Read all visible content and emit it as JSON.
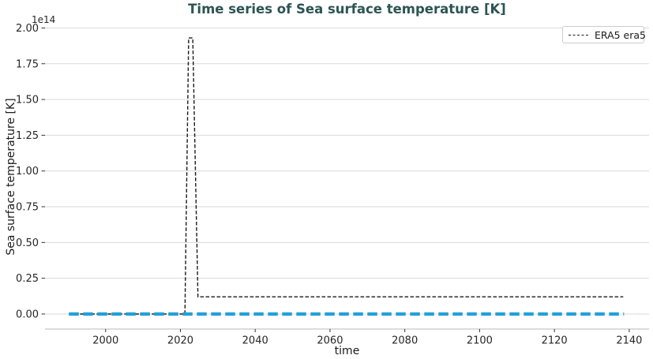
{
  "colors": {
    "title": "#2d5454",
    "grid": "#d9d9d9",
    "spine": "#c8c8c8",
    "tick_mark": "#333333",
    "tick_label": "#262626",
    "era5_line": "#1a1a1a",
    "zero_line": "#23a0dc",
    "legend_border": "#cccccc",
    "background": "#ffffff"
  },
  "legend": {
    "position": "upper right",
    "entries": [
      {
        "label": "ERA5 era5",
        "linestyle": "dashed",
        "color": "#1a1a1a"
      }
    ]
  },
  "chart_data": {
    "type": "line",
    "title": "Time series of Sea surface temperature [K]",
    "xlabel": "time",
    "ylabel": "Sea surface temperature [K]",
    "y_offset_text": "1e14",
    "y_unit_multiplier": 100000000000000.0,
    "xlim": [
      1983.8,
      2145.3
    ],
    "ylim_1e14": [
      -0.105,
      2.03
    ],
    "xticks": [
      2000,
      2020,
      2040,
      2060,
      2080,
      2100,
      2120,
      2140
    ],
    "xtick_labels": [
      "2000",
      "2020",
      "2040",
      "2060",
      "2080",
      "2100",
      "2120",
      "2140"
    ],
    "yticks_1e14": [
      0.0,
      0.25,
      0.5,
      0.75,
      1.0,
      1.25,
      1.5,
      1.75,
      2.0
    ],
    "ytick_labels": [
      "0.00",
      "0.25",
      "0.50",
      "0.75",
      "1.00",
      "1.25",
      "1.50",
      "1.75",
      "2.00"
    ],
    "grid": "horizontal",
    "legend_position": "upper right",
    "series": [
      {
        "name": "ERA5 era5",
        "id": "era5",
        "color": "#1a1a1a",
        "linestyle": "dashed",
        "linewidth": 1.4,
        "in_legend": true,
        "points_x_year": [
          1990.2,
          2021.2,
          2022.2,
          2023.3,
          2024.7,
          2138.4
        ],
        "points_y_1e14": [
          0.0,
          0.0,
          1.93,
          1.93,
          0.12,
          0.12
        ]
      },
      {
        "name": "",
        "id": "zero-flat",
        "color": "#23a0dc",
        "linestyle": "dashed",
        "linewidth": 4.2,
        "in_legend": false,
        "points_x_year": [
          1990.2,
          2138.6
        ],
        "points_y_1e14": [
          0.0,
          0.0
        ]
      }
    ]
  }
}
